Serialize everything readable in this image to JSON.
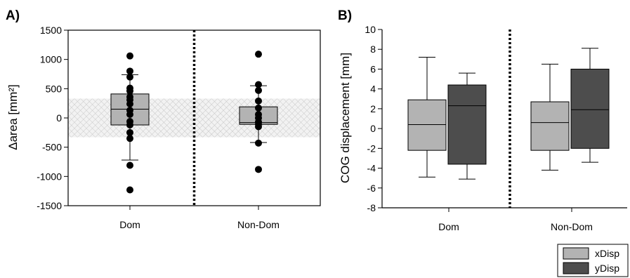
{
  "chart_data": [
    {
      "panel": "A)",
      "type": "box",
      "ylabel": "Δarea [mm²]",
      "ylim": [
        -1500,
        1500
      ],
      "yticks": [
        "1500",
        "1000",
        "500",
        "0",
        "-500",
        "-1000",
        "-1500"
      ],
      "categories": [
        "Dom",
        "Non-Dom"
      ],
      "shaded_band": [
        -330,
        330
      ],
      "boxes": [
        {
          "category": "Dom",
          "whisker_low": -720,
          "q1": -120,
          "median": 150,
          "q3": 410,
          "whisker_high": 740,
          "points": [
            1060,
            800,
            700,
            510,
            460,
            360,
            310,
            240,
            130,
            60,
            -60,
            -120,
            -250,
            -350,
            -810,
            -1230
          ]
        },
        {
          "category": "Non-Dom",
          "whisker_low": -420,
          "q1": -110,
          "median": -80,
          "q3": 190,
          "whisker_high": 550,
          "points": [
            1090,
            570,
            470,
            290,
            170,
            60,
            0,
            -70,
            -110,
            -150,
            -430,
            -880
          ]
        }
      ]
    },
    {
      "panel": "B)",
      "type": "box",
      "ylabel": "COG displacement [mm]",
      "ylim": [
        -8,
        10
      ],
      "yticks": [
        "10",
        "8",
        "6",
        "4",
        "2",
        "0",
        "-2",
        "-4",
        "-6",
        "-8"
      ],
      "categories": [
        "Dom",
        "Non-Dom"
      ],
      "series": [
        {
          "name": "xDisp",
          "color": "#b3b3b3",
          "boxes": [
            {
              "whisker_low": -4.9,
              "q1": -2.2,
              "median": 0.4,
              "q3": 2.9,
              "whisker_high": 7.2
            },
            {
              "whisker_low": -4.2,
              "q1": -2.2,
              "median": 0.6,
              "q3": 2.7,
              "whisker_high": 6.5
            }
          ]
        },
        {
          "name": "yDisp",
          "color": "#4d4d4d",
          "boxes": [
            {
              "whisker_low": -5.1,
              "q1": -3.6,
              "median": 2.3,
              "q3": 4.4,
              "whisker_high": 5.6
            },
            {
              "whisker_low": -3.4,
              "q1": -2.0,
              "median": 1.9,
              "q3": 6.0,
              "whisker_high": 8.1
            }
          ]
        }
      ],
      "legend": [
        "xDisp",
        "yDisp"
      ],
      "legend_position": "bottom-right"
    }
  ]
}
